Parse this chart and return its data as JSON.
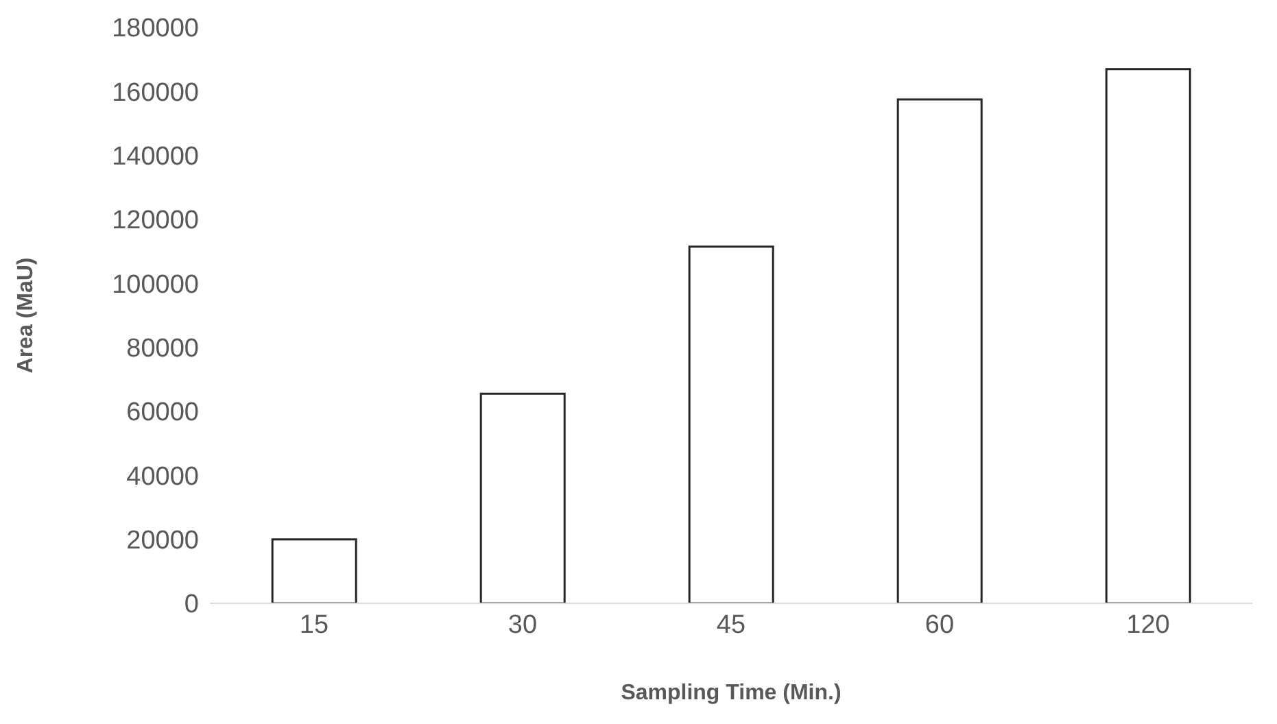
{
  "chart_data": {
    "type": "bar",
    "xlabel": "Sampling Time (Min.)",
    "ylabel": "Area (MaU)",
    "categories": [
      "15",
      "30",
      "45",
      "60",
      "120"
    ],
    "values": [
      20000,
      65500,
      111500,
      157500,
      167000
    ],
    "color": "#ffffff",
    "ylim": [
      0,
      180000
    ],
    "yticks": [
      0,
      20000,
      40000,
      60000,
      80000,
      100000,
      120000,
      140000,
      160000,
      180000
    ],
    "grid": false
  }
}
